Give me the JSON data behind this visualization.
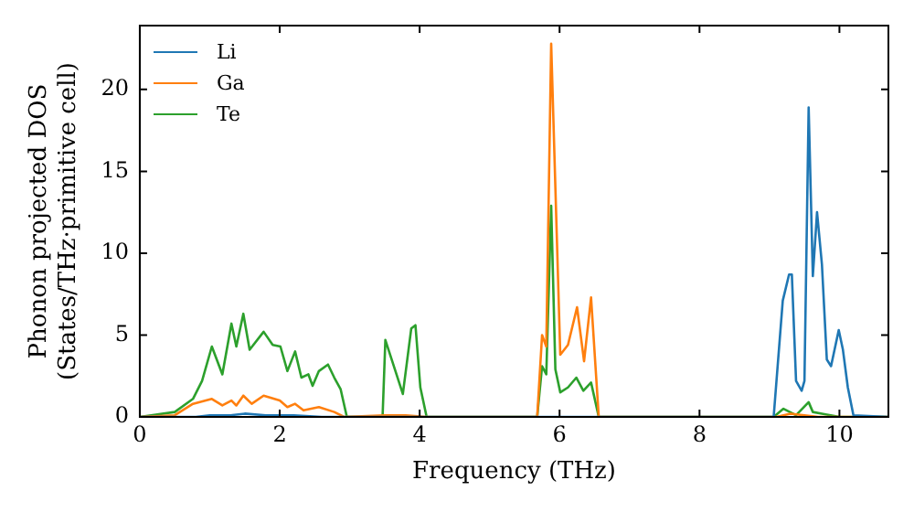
{
  "chart_data": {
    "type": "line",
    "xlabel": "Frequency (THz)",
    "ylabel": "Phonon projected DOS\n(States/THz·primitive cell)",
    "xlim": [
      0,
      10.7
    ],
    "ylim": [
      0,
      23.9
    ],
    "xticks": [
      0,
      2,
      4,
      6,
      8,
      10
    ],
    "yticks": [
      0,
      5,
      10,
      15,
      20
    ],
    "grid": false,
    "legend": "top left",
    "marker": "none",
    "line_style": "solid",
    "series": [
      {
        "name": "Li",
        "color": "#1f77b4",
        "x": [
          0,
          0.8,
          1.0,
          1.3,
          1.5,
          1.8,
          2.2,
          2.6,
          3.0,
          3.5,
          4.0,
          5.7,
          6.0,
          6.5,
          9.0,
          9.06,
          9.19,
          9.28,
          9.32,
          9.38,
          9.46,
          9.5,
          9.56,
          9.62,
          9.68,
          9.75,
          9.82,
          9.88,
          9.99,
          10.05,
          10.12,
          10.2,
          10.7
        ],
        "values": [
          0,
          0,
          0.1,
          0.1,
          0.2,
          0.1,
          0.1,
          0,
          0,
          0,
          0,
          0,
          0,
          0,
          0,
          0,
          7.1,
          8.7,
          8.7,
          2.2,
          1.6,
          2.2,
          18.9,
          8.6,
          12.5,
          9.3,
          3.5,
          3.1,
          5.3,
          4.1,
          1.8,
          0.1,
          0
        ]
      },
      {
        "name": "Ga",
        "color": "#ff7f0e",
        "x": [
          0,
          0.5,
          0.76,
          1.03,
          1.18,
          1.31,
          1.38,
          1.48,
          1.6,
          1.77,
          2.0,
          2.11,
          2.22,
          2.34,
          2.56,
          2.78,
          2.92,
          3.5,
          3.8,
          4.1,
          5.68,
          5.75,
          5.81,
          5.88,
          6.01,
          6.12,
          6.25,
          6.35,
          6.45,
          6.56,
          9.1,
          9.3,
          9.5,
          9.7,
          10.7
        ],
        "values": [
          0,
          0.1,
          0.8,
          1.1,
          0.7,
          1,
          0.7,
          1.3,
          0.8,
          1.3,
          1,
          0.6,
          0.8,
          0.4,
          0.6,
          0.3,
          0,
          0.1,
          0.1,
          0,
          0,
          5.0,
          4.3,
          22.8,
          3.8,
          4.4,
          6.7,
          3.4,
          7.3,
          0,
          0,
          0.2,
          0.1,
          0,
          0
        ]
      },
      {
        "name": "Te",
        "color": "#2ca02c",
        "x": [
          0,
          0.5,
          0.76,
          0.89,
          1.03,
          1.18,
          1.31,
          1.38,
          1.48,
          1.57,
          1.77,
          1.9,
          2.01,
          2.11,
          2.22,
          2.31,
          2.41,
          2.47,
          2.56,
          2.69,
          2.78,
          2.87,
          2.96,
          3.47,
          3.51,
          3.76,
          3.88,
          3.94,
          4.01,
          4.1,
          5.68,
          5.75,
          5.81,
          5.88,
          5.94,
          6.01,
          6.12,
          6.24,
          6.34,
          6.45,
          6.56,
          9.06,
          9.2,
          9.38,
          9.56,
          9.62,
          9.75,
          10.0,
          10.7
        ],
        "values": [
          0,
          0.3,
          1.1,
          2.2,
          4.3,
          2.6,
          5.7,
          4.3,
          6.3,
          4.1,
          5.2,
          4.4,
          4.3,
          2.8,
          4,
          2.4,
          2.6,
          1.9,
          2.8,
          3.2,
          2.4,
          1.7,
          0,
          0,
          4.7,
          1.4,
          5.4,
          5.6,
          1.8,
          0,
          0,
          3.1,
          2.6,
          12.9,
          2.9,
          1.5,
          1.8,
          2.4,
          1.6,
          2.1,
          0,
          0,
          0.5,
          0.1,
          0.9,
          0.3,
          0.2,
          0,
          0
        ]
      }
    ]
  }
}
